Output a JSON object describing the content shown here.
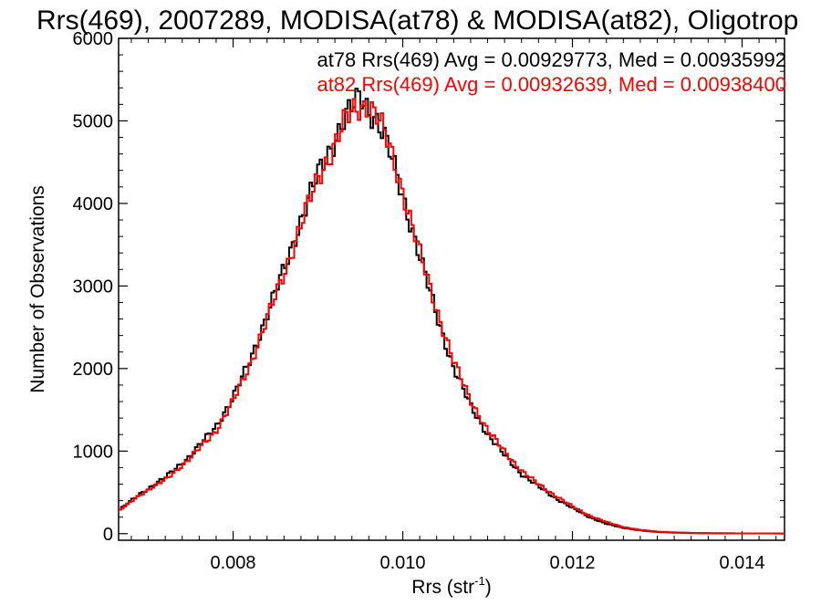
{
  "chart_data": {
    "type": "line",
    "title": "Rrs(469), 2007289, MODISA(at78) & MODISA(at82), Oligotrop",
    "xlabel": "Rrs (str",
    "xlabel_sup": "-1",
    "xlabel_close": ")",
    "ylabel": "Number of Observations",
    "xlim": [
      0.00665,
      0.0145
    ],
    "ylim": [
      -80,
      6000
    ],
    "xticks": [
      0.008,
      0.01,
      0.012,
      0.014
    ],
    "xtick_labels": [
      "0.008",
      "0.010",
      "0.012",
      "0.014"
    ],
    "yticks": [
      0,
      1000,
      2000,
      3000,
      4000,
      5000,
      6000
    ],
    "ytick_labels": [
      "0",
      "1000",
      "2000",
      "3000",
      "4000",
      "5000",
      "6000"
    ],
    "grid": false,
    "legend_position": "top-right",
    "annotations": [
      "at78 Rrs(469) Avg = 0.00929773, Med = 0.00935992",
      "at82 Rrs(469) Avg = 0.00932639, Med = 0.00938400"
    ],
    "series": [
      {
        "name": "at78",
        "color": "#000000",
        "x": [
          0.00665,
          0.0069,
          0.0072,
          0.0075,
          0.0078,
          0.008,
          0.0082,
          0.0084,
          0.0086,
          0.0088,
          0.009,
          0.0092,
          0.0093,
          0.0094,
          0.0095,
          0.0096,
          0.0097,
          0.0098,
          0.0099,
          0.01,
          0.0102,
          0.0104,
          0.0106,
          0.0108,
          0.011,
          0.0112,
          0.0114,
          0.0116,
          0.0118,
          0.012,
          0.0122,
          0.0124,
          0.0126,
          0.0128,
          0.013,
          0.0132,
          0.0134,
          0.0136,
          0.014,
          0.0145
        ],
        "y": [
          280,
          480,
          680,
          950,
          1300,
          1650,
          2100,
          2650,
          3200,
          3800,
          4350,
          4780,
          5000,
          5150,
          5300,
          5150,
          5000,
          4750,
          4450,
          4100,
          3350,
          2650,
          2000,
          1550,
          1200,
          950,
          720,
          570,
          430,
          310,
          200,
          120,
          70,
          40,
          20,
          12,
          8,
          5,
          3,
          2
        ]
      },
      {
        "name": "at82",
        "color": "#ff0000",
        "x": [
          0.00665,
          0.0069,
          0.0072,
          0.0075,
          0.0078,
          0.008,
          0.0082,
          0.0084,
          0.0086,
          0.0088,
          0.009,
          0.0092,
          0.0093,
          0.0094,
          0.0095,
          0.0096,
          0.0097,
          0.0098,
          0.0099,
          0.01,
          0.0102,
          0.0104,
          0.0106,
          0.0108,
          0.011,
          0.0112,
          0.0114,
          0.0116,
          0.0118,
          0.012,
          0.0122,
          0.0124,
          0.0126,
          0.0128,
          0.013,
          0.0132,
          0.0134,
          0.0136,
          0.014,
          0.0145
        ],
        "y": [
          270,
          470,
          650,
          920,
          1250,
          1600,
          2050,
          2600,
          3150,
          3750,
          4300,
          4720,
          4960,
          5100,
          5180,
          5200,
          5050,
          4800,
          4500,
          4150,
          3400,
          2720,
          2080,
          1620,
          1250,
          1000,
          760,
          600,
          460,
          330,
          220,
          140,
          80,
          45,
          25,
          15,
          10,
          6,
          3,
          2
        ]
      }
    ]
  }
}
